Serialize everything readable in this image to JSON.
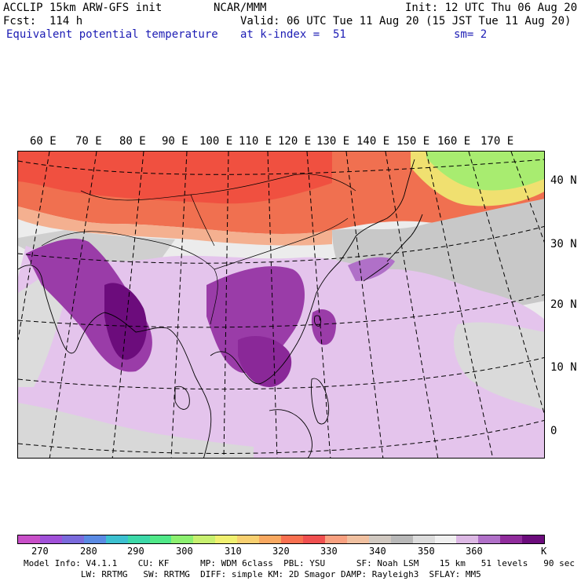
{
  "header": {
    "model": "ACCLIP 15km ARW-GFS init",
    "org": "NCAR/MMM",
    "init": "Init: 12 UTC Thu 06 Aug 20",
    "fcst": "Fcst:  114 h",
    "valid": "Valid: 06 UTC Tue 11 Aug 20 (15 JST Tue 11 Aug 20)",
    "field": "Equivalent potential temperature",
    "level": "at k-index =  51",
    "smooth": "sm= 2"
  },
  "map": {
    "lon_labels": [
      "60 E",
      "70 E",
      "80 E",
      "90 E",
      "100 E",
      "110 E",
      "120 E",
      "130 E",
      "140 E",
      "150 E",
      "160 E",
      "170 E"
    ],
    "lat_labels": [
      "40 N",
      "30 N",
      "20 N",
      "10 N",
      "0"
    ]
  },
  "colorbar": {
    "colors": [
      "#c84fc8",
      "#a050d8",
      "#7a6adc",
      "#5a8ae4",
      "#3cc0d0",
      "#3cd8a8",
      "#50e888",
      "#8cf070",
      "#c8f070",
      "#f0f070",
      "#f8d070",
      "#f8a860",
      "#f87050",
      "#f05050",
      "#f8a080",
      "#f0c0a0",
      "#d0c8c0",
      "#b8b8b8",
      "#dcdcdc",
      "#f0f0f0",
      "#dcb8e4",
      "#b070c8",
      "#902c9c",
      "#6c0c7c"
    ],
    "labels": [
      "270",
      "280",
      "290",
      "300",
      "310",
      "320",
      "330",
      "340",
      "350",
      "360"
    ],
    "unit": "K"
  },
  "footer": {
    "line1": "Model Info: V4.1.1    CU: KF      MP: WDM 6class  PBL: YSU      SF: Noah LSM    15 km   51 levels   90 sec",
    "line2": "           LW: RRTMG   SW: RRTMG  DIFF: simple KM: 2D Smagor DAMP: Rayleigh3  SFLAY: MM5"
  }
}
